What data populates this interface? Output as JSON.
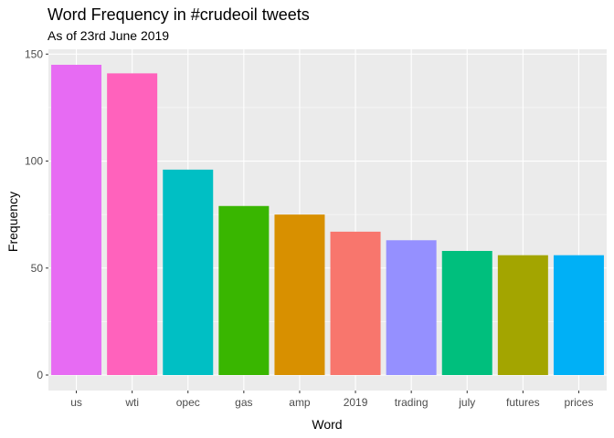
{
  "chart_data": {
    "type": "bar",
    "title": "Word Frequency in #crudeoil tweets",
    "subtitle": "As of 23rd June 2019",
    "xlabel": "Word",
    "ylabel": "Frequency",
    "categories": [
      "us",
      "wti",
      "opec",
      "gas",
      "amp",
      "2019",
      "trading",
      "july",
      "futures",
      "prices"
    ],
    "values": [
      145,
      141,
      96,
      79,
      75,
      67,
      63,
      58,
      56,
      56
    ],
    "colors": [
      "#E76BF3",
      "#FF62BC",
      "#00BFC4",
      "#39B600",
      "#D89000",
      "#F8766D",
      "#9590FF",
      "#00BF7D",
      "#A3A500",
      "#00B0F6"
    ],
    "yticks": [
      0,
      50,
      100,
      150
    ],
    "ylim": [
      -7.25,
      152.25
    ],
    "grid": true,
    "legend": "none",
    "panel_color": "#EBEBEB",
    "grid_color": "#FFFFFF"
  }
}
